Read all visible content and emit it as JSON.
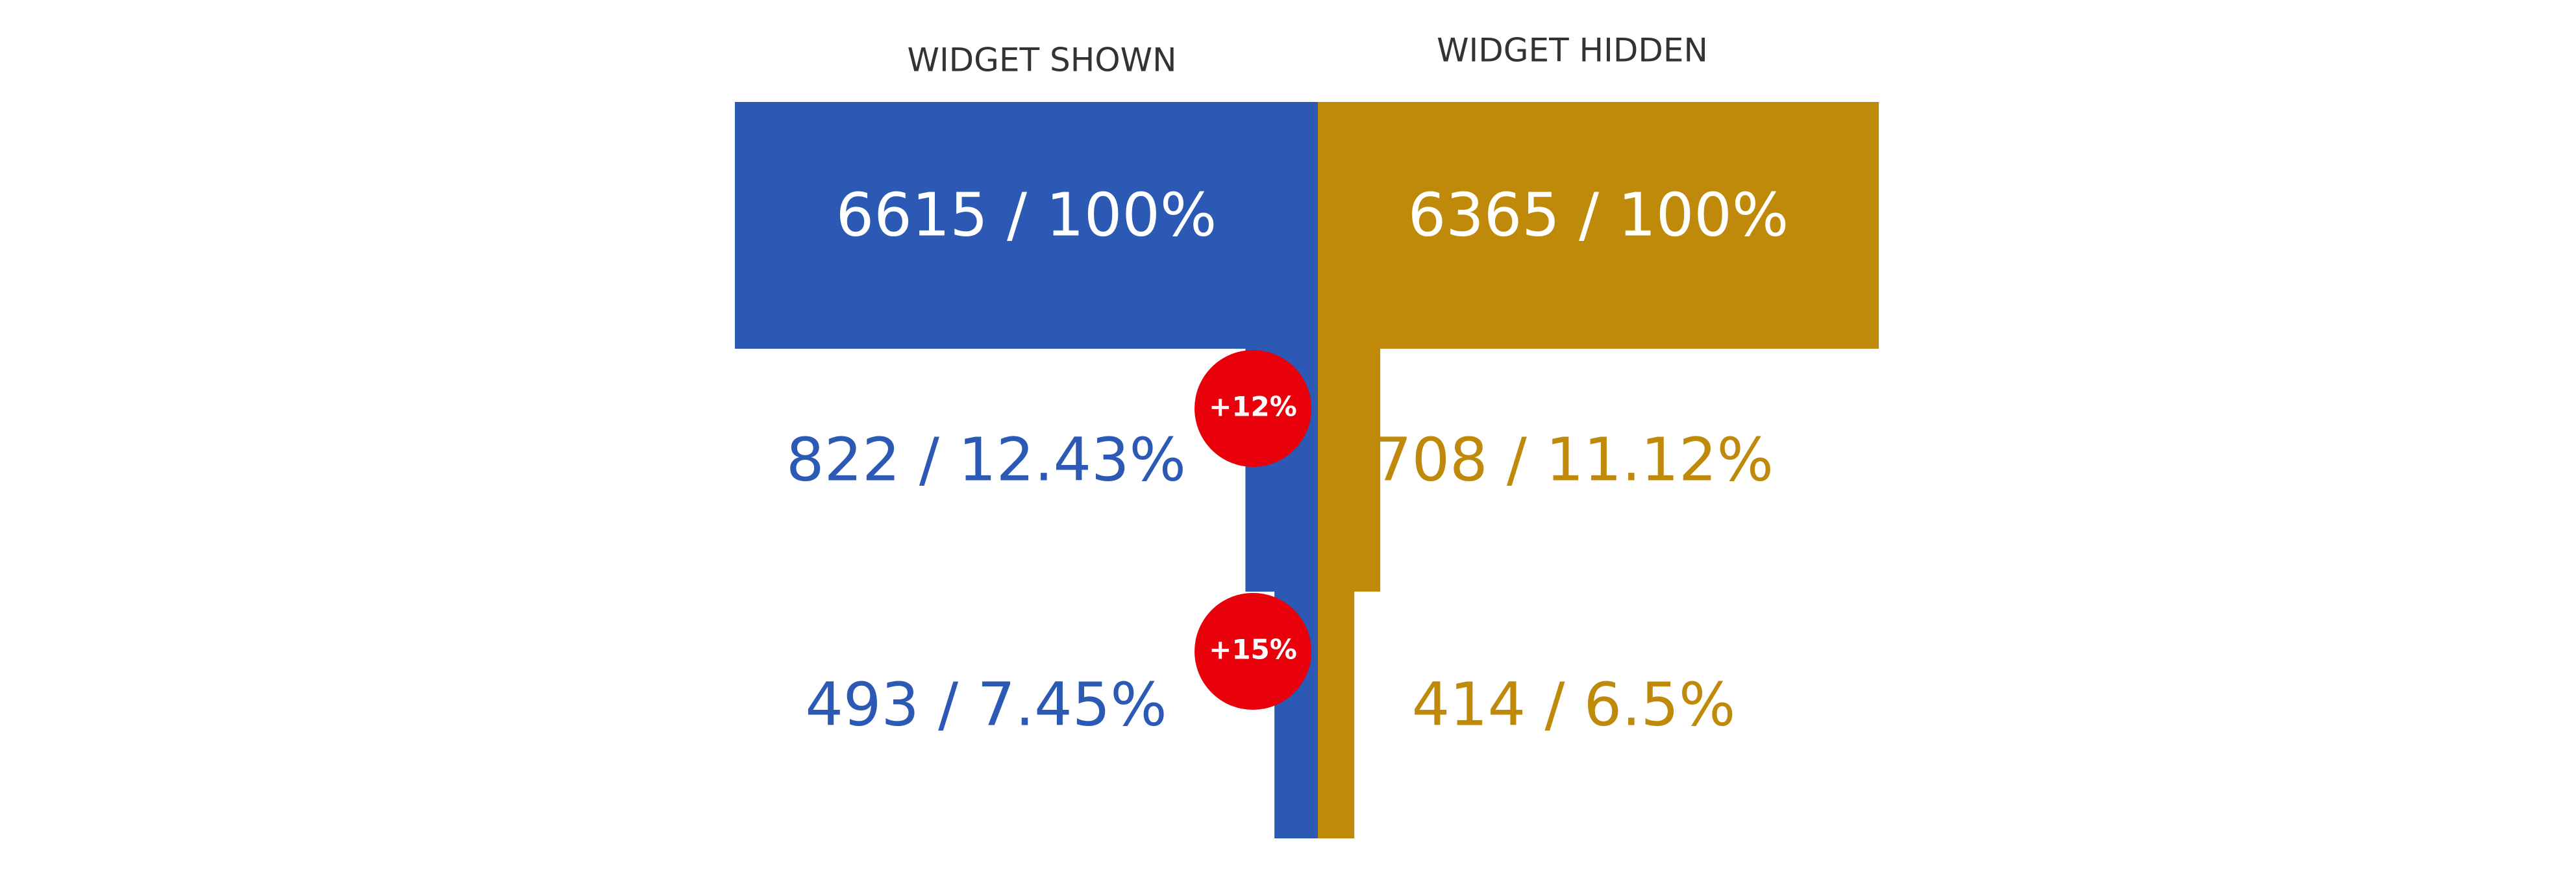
{
  "chart_data": {
    "type": "funnel",
    "series": [
      {
        "name": "WIDGET SHOWN",
        "color": "#2b59b3",
        "values": [
          6615,
          822,
          493
        ],
        "value_labels": [
          "6615 / 100%",
          "822 / 12.43%",
          "493 / 7.45%"
        ]
      },
      {
        "name": "WIDGET HIDDEN",
        "color": "#bf8a0a",
        "values": [
          6365,
          708,
          414
        ],
        "value_labels": [
          "6365 / 100%",
          "708 / 11.12%",
          "414 / 6.5%"
        ]
      }
    ],
    "annotations": [
      "+12%",
      "+15%"
    ],
    "annotation_color": "#e8000b"
  }
}
